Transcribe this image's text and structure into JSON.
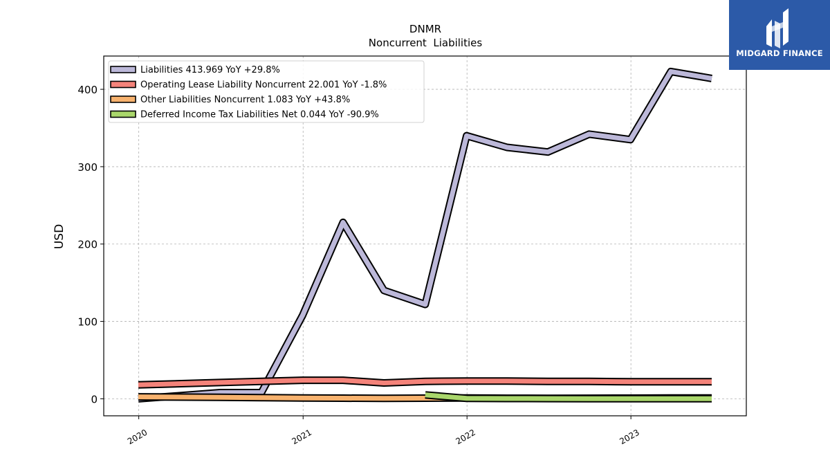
{
  "brand": {
    "name": "MIDGARD FINANCE",
    "bg_color": "#2c5aa8"
  },
  "chart_data": {
    "type": "line",
    "title": "DNMR",
    "subtitle": "Noncurrent  Liabilities",
    "xlabel": "",
    "ylabel": "USD",
    "xlim": [
      "2019-10-15",
      "2023-09-15"
    ],
    "ylim": [
      -22,
      443
    ],
    "yticks": [
      0,
      100,
      200,
      300,
      400
    ],
    "xticks": [
      "2020",
      "2021",
      "2022",
      "2023"
    ],
    "grid": true,
    "legend_position": "top-left",
    "series": [
      {
        "name": "Liabilities",
        "legend_label": "Liabilities  413.969 YoY +29.8%",
        "color": "#bcb8d9",
        "x": [
          "2019-12-31",
          "2020-06-30",
          "2020-09-30",
          "2020-12-31",
          "2021-03-31",
          "2021-06-30",
          "2021-09-30",
          "2021-12-31",
          "2022-03-31",
          "2022-06-30",
          "2022-09-30",
          "2022-12-31",
          "2023-03-31",
          "2023-06-30"
        ],
        "y": [
          0,
          8,
          8,
          108,
          228,
          140,
          122,
          340,
          325,
          319,
          342,
          335,
          423,
          414
        ]
      },
      {
        "name": "Operating Lease Liability Noncurrent",
        "legend_label": "Operating Lease Liability Noncurrent  22.001 YoY -1.8%",
        "color": "#f4837a",
        "x": [
          "2019-12-31",
          "2020-06-30",
          "2020-09-30",
          "2020-12-31",
          "2021-03-31",
          "2021-06-30",
          "2021-09-30",
          "2021-12-31",
          "2022-03-31",
          "2022-06-30",
          "2022-09-30",
          "2022-12-31",
          "2023-03-31",
          "2023-06-30"
        ],
        "y": [
          18,
          21,
          22.5,
          24,
          24,
          20.5,
          22.5,
          23,
          23,
          22.5,
          22.5,
          22,
          22,
          22
        ]
      },
      {
        "name": "Other Liabilities Noncurrent",
        "legend_label": "Other Liabilities Noncurrent  1.083 YoY +43.8%",
        "color": "#f7b26e",
        "x": [
          "2019-12-31",
          "2020-06-30",
          "2020-09-30",
          "2020-12-31",
          "2021-03-31",
          "2021-06-30",
          "2021-09-30",
          "2021-12-31",
          "2022-03-31",
          "2022-06-30",
          "2022-09-30",
          "2022-12-31",
          "2023-03-31",
          "2023-06-30"
        ],
        "y": [
          2.5,
          2,
          1.5,
          1,
          0.8,
          0.5,
          0.8,
          1,
          0.7,
          0.6,
          0.7,
          0.8,
          1,
          1.1
        ]
      },
      {
        "name": "Deferred Income Tax Liabilities Net",
        "legend_label": "Deferred Income Tax Liabilities Net  0.044 YoY -90.9%",
        "color": "#a9d66b",
        "x": [
          "2021-09-30",
          "2021-12-31",
          "2022-03-31",
          "2022-06-30",
          "2022-09-30",
          "2022-12-31",
          "2023-03-31",
          "2023-06-30"
        ],
        "y": [
          5,
          0.5,
          0.4,
          0.3,
          0.2,
          0.1,
          0.05,
          0.044
        ]
      }
    ]
  }
}
